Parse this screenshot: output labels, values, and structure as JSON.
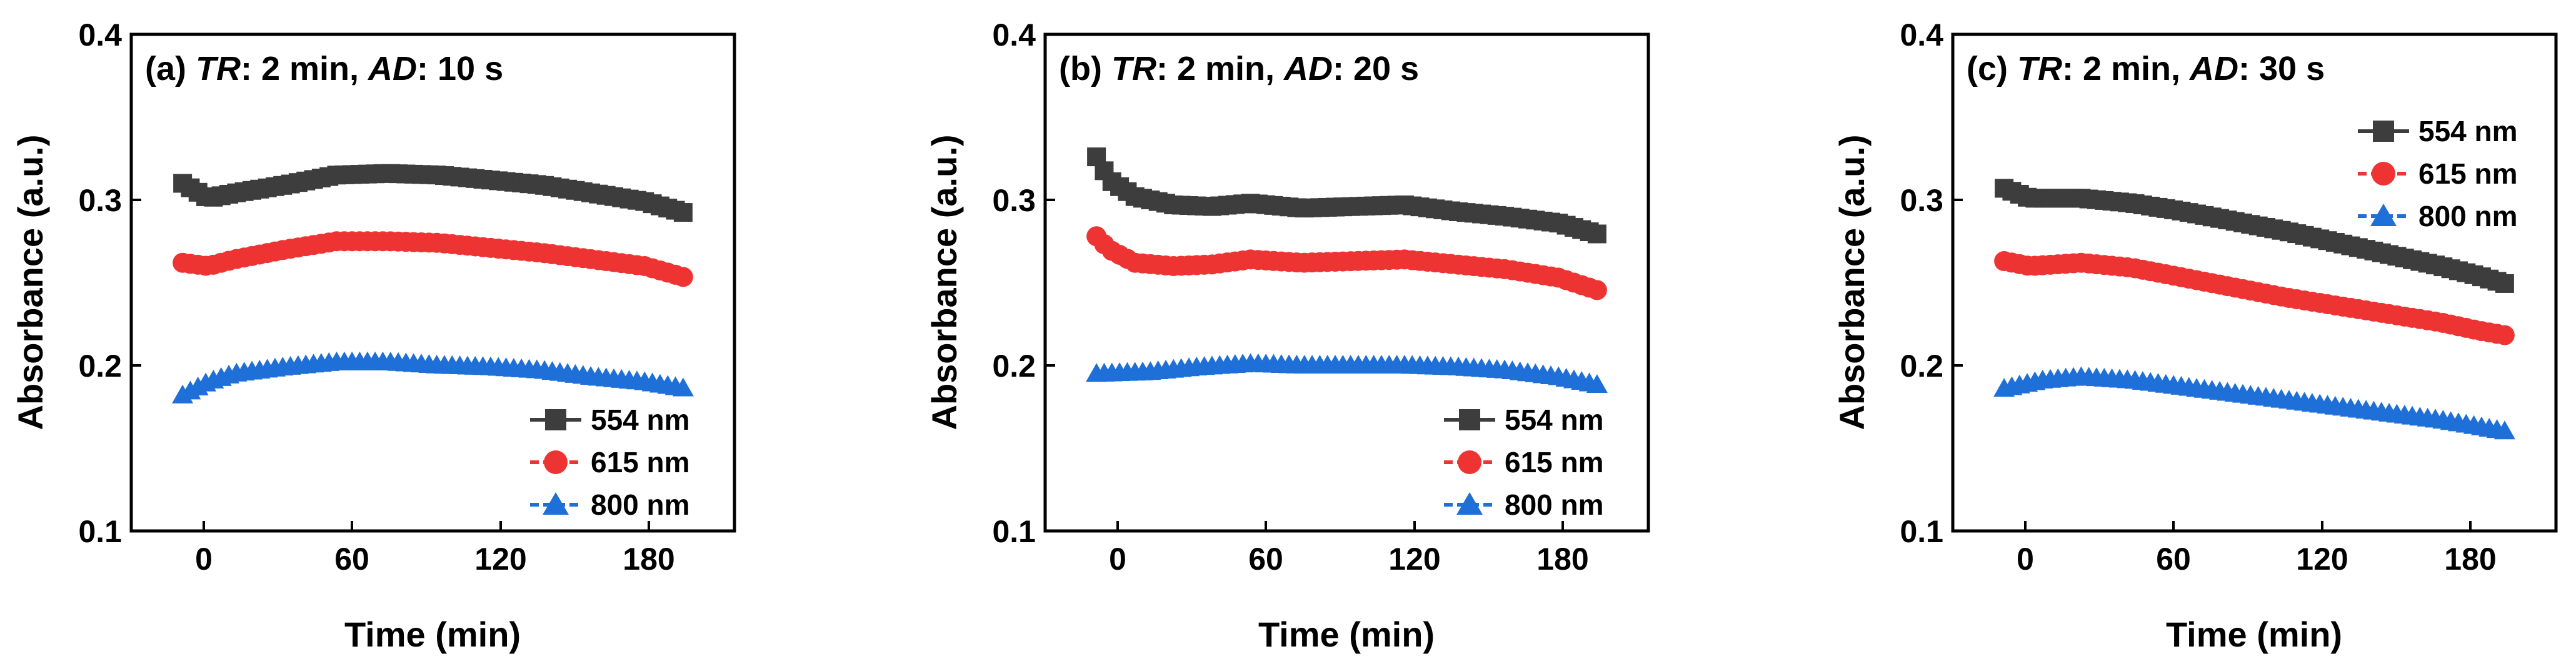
{
  "chart_data": [
    {
      "type": "scatter",
      "panel_label": "(a)",
      "title_key1": "TR",
      "title_val1": ": 2 min, ",
      "title_key2": "AD",
      "title_val2": ": 10 s",
      "xlabel": "Time (min)",
      "ylabel": "Absorbance (a.u.)",
      "xlim": [
        -20,
        215
      ],
      "ylim": [
        0.1,
        0.4
      ],
      "xticks": [
        0,
        60,
        120,
        180
      ],
      "yticks": [
        0.1,
        0.2,
        0.3,
        0.4
      ],
      "legend_position": "bottom-right",
      "x_range": [
        0,
        196
      ],
      "x_step": 3,
      "series": [
        {
          "name": "554 nm",
          "marker": "square",
          "color": "#3d3d3d",
          "anchors": [
            [
              0,
              0.31
            ],
            [
              10,
              0.301
            ],
            [
              20,
              0.304
            ],
            [
              40,
              0.309
            ],
            [
              60,
              0.315
            ],
            [
              80,
              0.316
            ],
            [
              100,
              0.315
            ],
            [
              120,
              0.312
            ],
            [
              140,
              0.309
            ],
            [
              160,
              0.304
            ],
            [
              180,
              0.299
            ],
            [
              196,
              0.292
            ]
          ]
        },
        {
          "name": "615 nm",
          "marker": "circle",
          "color": "#ee3333",
          "anchors": [
            [
              0,
              0.262
            ],
            [
              10,
              0.26
            ],
            [
              20,
              0.264
            ],
            [
              40,
              0.27
            ],
            [
              60,
              0.275
            ],
            [
              80,
              0.275
            ],
            [
              100,
              0.274
            ],
            [
              120,
              0.271
            ],
            [
              140,
              0.268
            ],
            [
              160,
              0.264
            ],
            [
              180,
              0.26
            ],
            [
              196,
              0.253
            ]
          ]
        },
        {
          "name": "800 nm",
          "marker": "triangle",
          "color": "#1f6fd8",
          "anchors": [
            [
              0,
              0.182
            ],
            [
              10,
              0.19
            ],
            [
              20,
              0.195
            ],
            [
              40,
              0.199
            ],
            [
              60,
              0.202
            ],
            [
              80,
              0.202
            ],
            [
              100,
              0.2
            ],
            [
              120,
              0.199
            ],
            [
              140,
              0.197
            ],
            [
              160,
              0.193
            ],
            [
              180,
              0.19
            ],
            [
              196,
              0.186
            ]
          ]
        }
      ]
    },
    {
      "type": "scatter",
      "panel_label": "(b)",
      "title_key1": "TR",
      "title_val1": ": 2 min, ",
      "title_key2": "AD",
      "title_val2": ": 20 s",
      "xlabel": "Time (min)",
      "ylabel": "Absorbance (a.u.)",
      "xlim": [
        -20,
        215
      ],
      "ylim": [
        0.1,
        0.4
      ],
      "xticks": [
        0,
        60,
        120,
        180
      ],
      "yticks": [
        0.1,
        0.2,
        0.3,
        0.4
      ],
      "legend_position": "bottom-right",
      "x_range": [
        0,
        196
      ],
      "x_step": 3,
      "series": [
        {
          "name": "554 nm",
          "marker": "square",
          "color": "#3d3d3d",
          "anchors": [
            [
              0,
              0.326
            ],
            [
              5,
              0.312
            ],
            [
              15,
              0.302
            ],
            [
              30,
              0.297
            ],
            [
              45,
              0.296
            ],
            [
              60,
              0.298
            ],
            [
              80,
              0.295
            ],
            [
              100,
              0.296
            ],
            [
              120,
              0.297
            ],
            [
              140,
              0.293
            ],
            [
              160,
              0.29
            ],
            [
              180,
              0.286
            ],
            [
              196,
              0.279
            ]
          ]
        },
        {
          "name": "615 nm",
          "marker": "circle",
          "color": "#ee3333",
          "anchors": [
            [
              0,
              0.278
            ],
            [
              5,
              0.27
            ],
            [
              15,
              0.262
            ],
            [
              30,
              0.26
            ],
            [
              45,
              0.261
            ],
            [
              60,
              0.264
            ],
            [
              80,
              0.262
            ],
            [
              100,
              0.263
            ],
            [
              120,
              0.264
            ],
            [
              140,
              0.261
            ],
            [
              160,
              0.258
            ],
            [
              180,
              0.253
            ],
            [
              196,
              0.245
            ]
          ]
        },
        {
          "name": "800 nm",
          "marker": "triangle",
          "color": "#1f6fd8",
          "anchors": [
            [
              0,
              0.195
            ],
            [
              20,
              0.196
            ],
            [
              40,
              0.199
            ],
            [
              60,
              0.201
            ],
            [
              80,
              0.2
            ],
            [
              100,
              0.2
            ],
            [
              120,
              0.2
            ],
            [
              140,
              0.199
            ],
            [
              160,
              0.197
            ],
            [
              180,
              0.193
            ],
            [
              196,
              0.188
            ]
          ]
        }
      ]
    },
    {
      "type": "scatter",
      "panel_label": "(c)",
      "title_key1": "TR",
      "title_val1": ": 2 min, ",
      "title_key2": "AD",
      "title_val2": ": 30 s",
      "xlabel": "Time (min)",
      "ylabel": "Absorbance (a.u.)",
      "xlim": [
        -20,
        215
      ],
      "ylim": [
        0.1,
        0.4
      ],
      "xticks": [
        0,
        60,
        120,
        180
      ],
      "yticks": [
        0.1,
        0.2,
        0.3,
        0.4
      ],
      "legend_position": "top-right",
      "x_range": [
        0,
        196
      ],
      "x_step": 3,
      "series": [
        {
          "name": "554 nm",
          "marker": "square",
          "color": "#3d3d3d",
          "anchors": [
            [
              0,
              0.307
            ],
            [
              10,
              0.301
            ],
            [
              30,
              0.301
            ],
            [
              50,
              0.298
            ],
            [
              70,
              0.293
            ],
            [
              90,
              0.287
            ],
            [
              110,
              0.281
            ],
            [
              130,
              0.274
            ],
            [
              150,
              0.267
            ],
            [
              170,
              0.26
            ],
            [
              185,
              0.254
            ],
            [
              196,
              0.249
            ]
          ]
        },
        {
          "name": "615 nm",
          "marker": "circle",
          "color": "#ee3333",
          "anchors": [
            [
              0,
              0.263
            ],
            [
              10,
              0.26
            ],
            [
              30,
              0.262
            ],
            [
              50,
              0.259
            ],
            [
              70,
              0.253
            ],
            [
              90,
              0.247
            ],
            [
              110,
              0.241
            ],
            [
              130,
              0.236
            ],
            [
              150,
              0.231
            ],
            [
              170,
              0.226
            ],
            [
              185,
              0.221
            ],
            [
              196,
              0.218
            ]
          ]
        },
        {
          "name": "800 nm",
          "marker": "triangle",
          "color": "#1f6fd8",
          "anchors": [
            [
              0,
              0.186
            ],
            [
              15,
              0.191
            ],
            [
              30,
              0.193
            ],
            [
              50,
              0.191
            ],
            [
              70,
              0.187
            ],
            [
              90,
              0.183
            ],
            [
              110,
              0.179
            ],
            [
              130,
              0.175
            ],
            [
              150,
              0.171
            ],
            [
              170,
              0.167
            ],
            [
              185,
              0.163
            ],
            [
              196,
              0.16
            ]
          ]
        }
      ]
    }
  ]
}
